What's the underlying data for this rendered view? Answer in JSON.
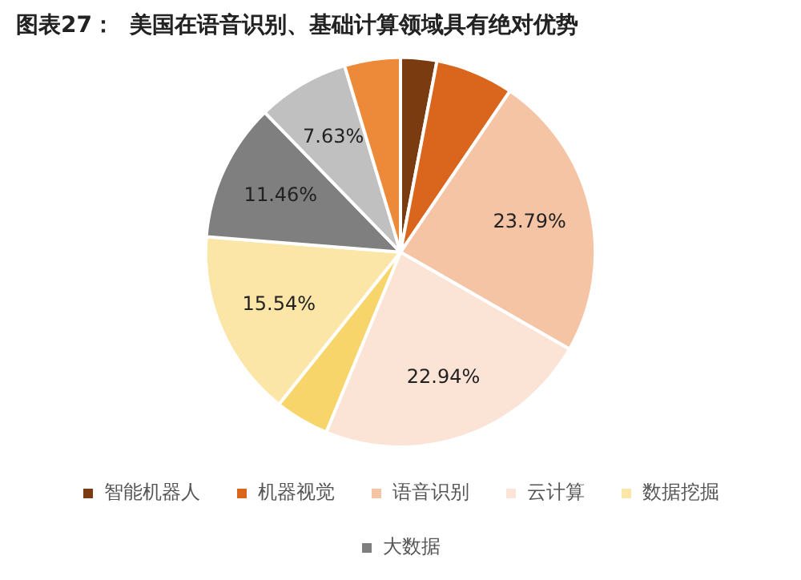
{
  "chart_data": {
    "type": "pie",
    "title": "图表27：  美国在语音识别、基础计算领域具有绝对优势",
    "categories": [
      "智能机器人",
      "机器视觉",
      "语音识别",
      "云计算",
      null,
      "数据挖掘",
      "大数据",
      null,
      null
    ],
    "values": [
      3,
      6.5,
      23.79,
      22.94,
      4.5,
      15.54,
      11.46,
      7.63,
      4.64
    ],
    "value_labels": [
      null,
      null,
      "23.79%",
      "22.94%",
      null,
      "15.54%",
      "11.46%",
      "7.63%",
      null
    ],
    "colors": [
      "#7a3b10",
      "#d9661c",
      "#f5c4a4",
      "#fbe3d6",
      "#f7d56a",
      "#fbe6a8",
      "#7f7f7f",
      "#c0c0c0",
      "#ed8a3a"
    ],
    "legend": "bottom"
  }
}
